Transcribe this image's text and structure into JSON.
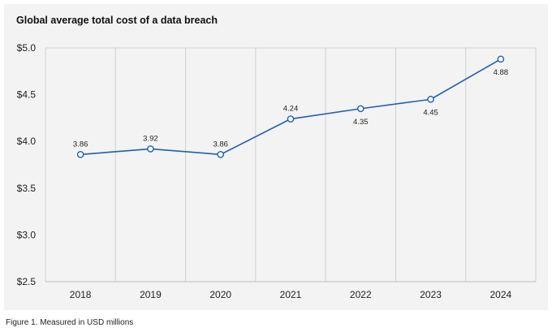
{
  "caption": "Figure 1. Measured in USD millions",
  "chart_data": {
    "type": "line",
    "title": "Global average total cost of a data breach",
    "xlabel": "",
    "ylabel": "",
    "categories": [
      "2018",
      "2019",
      "2020",
      "2021",
      "2022",
      "2023",
      "2024"
    ],
    "series": [
      {
        "values": [
          3.86,
          3.92,
          3.86,
          4.24,
          4.35,
          4.45,
          4.88
        ]
      }
    ],
    "data_labels": [
      "3.86",
      "3.92",
      "3.86",
      "4.24",
      "4.35",
      "4.45",
      "4.88"
    ],
    "ylim": [
      2.5,
      5.0
    ],
    "yticks": [
      2.5,
      3.0,
      3.5,
      4.0,
      4.5,
      5.0
    ],
    "ytick_labels": [
      "$2.5",
      "$3.0",
      "$3.5",
      "$4.0",
      "$4.5",
      "$5.0"
    ],
    "grid": "vertical",
    "legend": "none",
    "colors": {
      "line": "#1f5fb0",
      "marker_fill": "#ffffff",
      "grid": "#d0d0d0",
      "axis": "#bbbbbb",
      "background": "#f3f3f3"
    }
  }
}
